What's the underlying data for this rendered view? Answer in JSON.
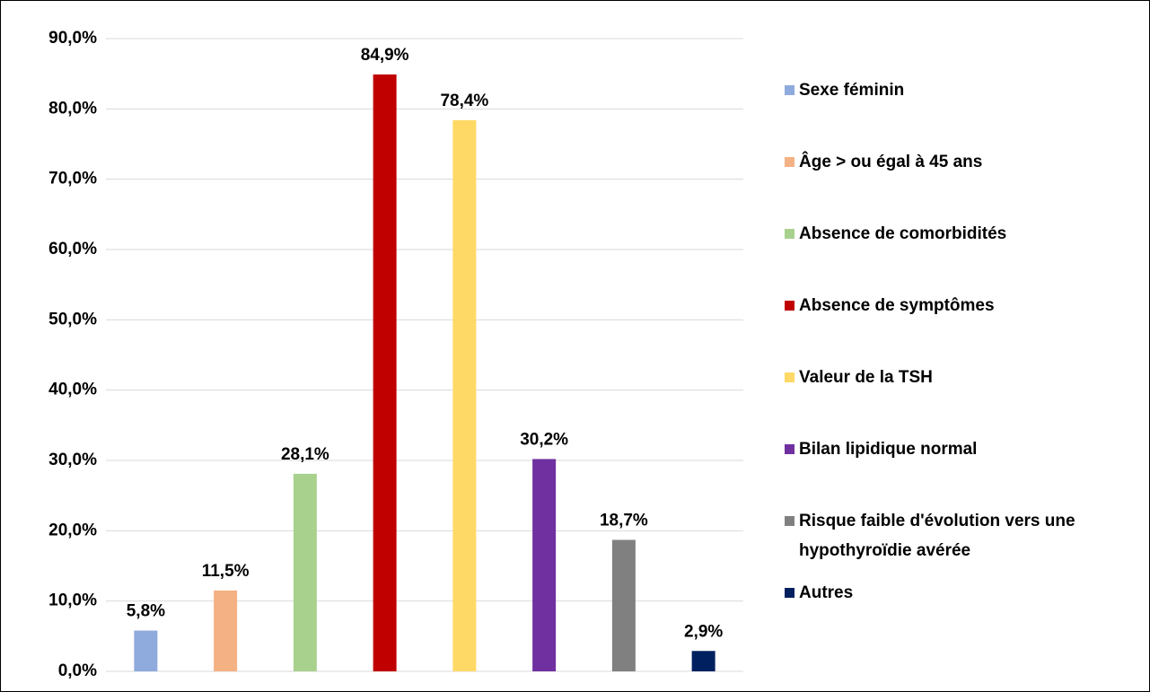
{
  "chart_data": {
    "type": "bar",
    "ylim": [
      0,
      90
    ],
    "yticks": [
      {
        "value": 0,
        "label": "0,0%"
      },
      {
        "value": 10,
        "label": "10,0%"
      },
      {
        "value": 20,
        "label": "20,0%"
      },
      {
        "value": 30,
        "label": "30,0%"
      },
      {
        "value": 40,
        "label": "40,0%"
      },
      {
        "value": 50,
        "label": "50,0%"
      },
      {
        "value": 60,
        "label": "60,0%"
      },
      {
        "value": 70,
        "label": "70,0%"
      },
      {
        "value": 80,
        "label": "80,0%"
      },
      {
        "value": 90,
        "label": "90,0%"
      }
    ],
    "grid": true,
    "legend": "right",
    "series": [
      {
        "name": "Sexe féminin",
        "color": "#8faadc",
        "values": [
          5.8
        ],
        "value_labels": [
          "5,8%"
        ]
      },
      {
        "name": "Âge > ou égal à 45 ans",
        "color": "#f4b183",
        "values": [
          11.5
        ],
        "value_labels": [
          "11,5%"
        ]
      },
      {
        "name": "Absence de comorbidités",
        "color": "#a9d18e",
        "values": [
          28.1
        ],
        "value_labels": [
          "28,1%"
        ]
      },
      {
        "name": "Absence de symptômes",
        "color": "#c00000",
        "values": [
          84.9
        ],
        "value_labels": [
          "84,9%"
        ]
      },
      {
        "name": "Valeur de la TSH",
        "color": "#ffd966",
        "values": [
          78.4
        ],
        "value_labels": [
          "78,4%"
        ]
      },
      {
        "name": "Bilan lipidique normal",
        "color": "#7030a0",
        "values": [
          30.2
        ],
        "value_labels": [
          "30,2%"
        ]
      },
      {
        "name": "Risque faible d'évolution vers une hypothyroïdie avérée",
        "color": "#808080",
        "values": [
          18.7
        ],
        "value_labels": [
          "18,7%"
        ]
      },
      {
        "name": "Autres",
        "color": "#002060",
        "values": [
          2.9
        ],
        "value_labels": [
          "2,9%"
        ]
      }
    ]
  }
}
